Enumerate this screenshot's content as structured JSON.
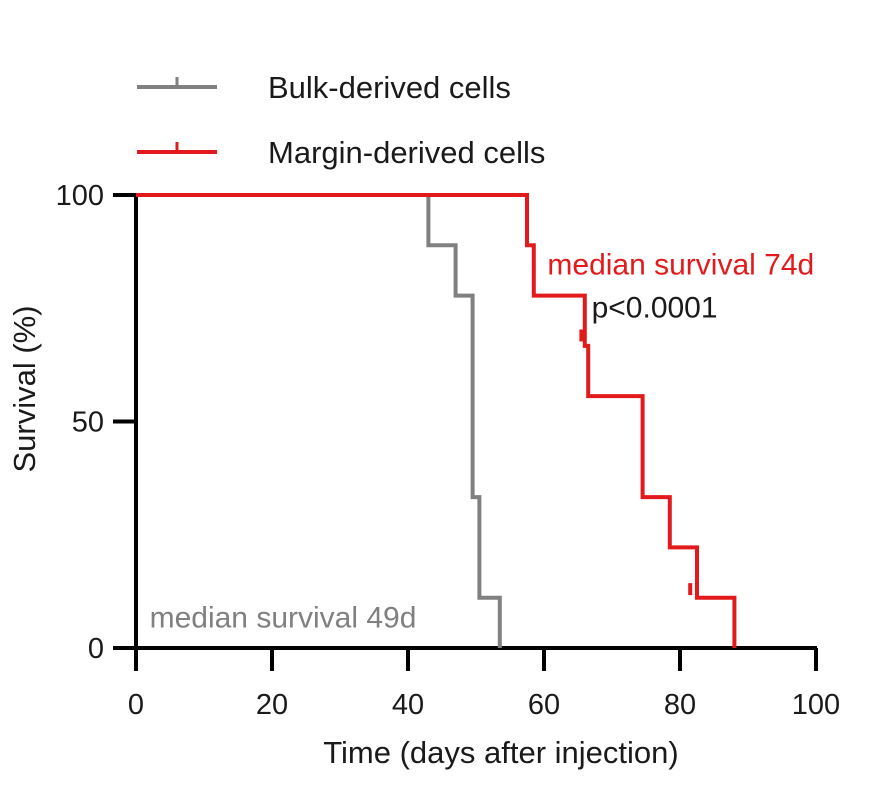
{
  "chart_data": {
    "type": "line",
    "step": true,
    "xlabel": "Time (days after injection)",
    "ylabel": "Survival (%)",
    "xlim": [
      0,
      100
    ],
    "ylim": [
      0,
      100
    ],
    "xticks": [
      0,
      20,
      40,
      60,
      80,
      100
    ],
    "yticks": [
      0,
      50,
      100
    ],
    "grid": false,
    "legend_position": "top-left",
    "series": [
      {
        "name": "Bulk-derived cells",
        "color": "#808080",
        "x": [
          0,
          43,
          47,
          49.5,
          50.5,
          53.5
        ],
        "y": [
          100,
          88.9,
          77.8,
          33.3,
          11.1,
          0
        ],
        "censored": []
      },
      {
        "name": "Margin-derived cells",
        "color": "#e31a1c",
        "x": [
          0,
          57.5,
          58.5,
          66,
          66.5,
          74.5,
          78.5,
          82.5,
          88
        ],
        "y": [
          100,
          88.9,
          77.8,
          66.7,
          55.6,
          33.3,
          22.2,
          11.1,
          0
        ],
        "censored": [
          {
            "x": 65.5,
            "y": 69
          },
          {
            "x": 81.5,
            "y": 13
          }
        ]
      }
    ],
    "annotations": [
      {
        "text": "median survival 74d",
        "color": "#e31a1c",
        "x": 60.5,
        "y": 82.5
      },
      {
        "text": "p<0.0001",
        "color": "#1a1a1a",
        "x": 67,
        "y": 73
      },
      {
        "text": "median survival 49d",
        "color": "#808080",
        "x": 2,
        "y": 4.5
      }
    ]
  }
}
